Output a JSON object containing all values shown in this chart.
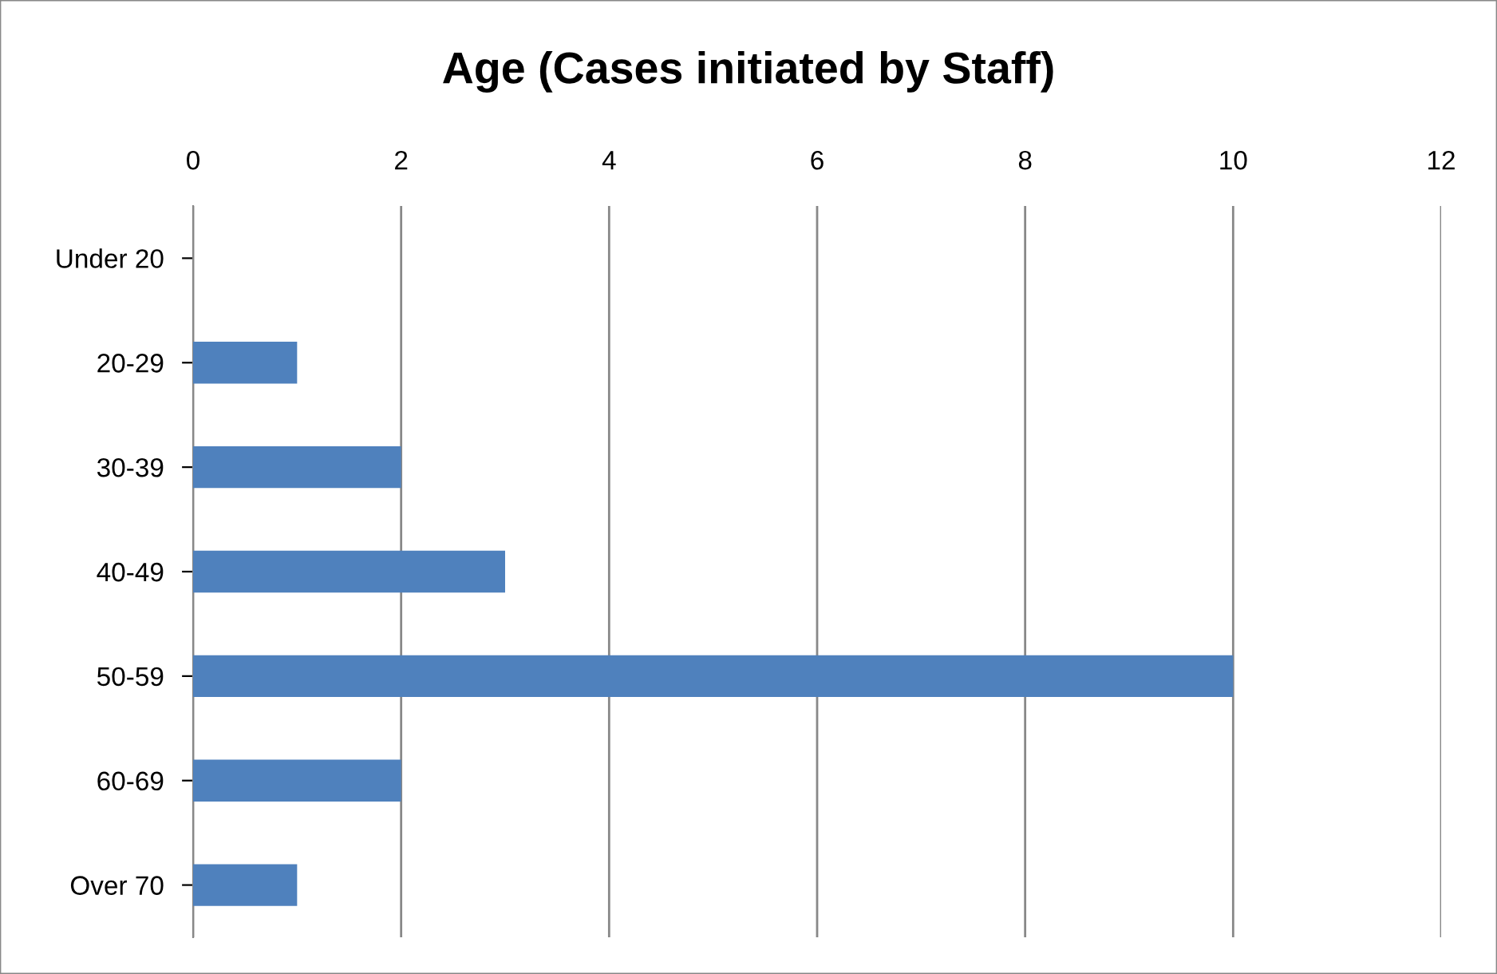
{
  "chart_data": {
    "type": "bar",
    "orientation": "horizontal",
    "title": "Age (Cases initiated by Staff)",
    "categories": [
      "Under 20",
      "20-29",
      "30-39",
      "40-49",
      "50-59",
      "60-69",
      "Over 70"
    ],
    "values": [
      0,
      1,
      2,
      3,
      10,
      2,
      1
    ],
    "color": "#4f81bd",
    "xlim": [
      0,
      12
    ],
    "xticks": [
      0,
      2,
      4,
      6,
      8,
      10,
      12
    ],
    "grid": "x",
    "legend": false
  }
}
